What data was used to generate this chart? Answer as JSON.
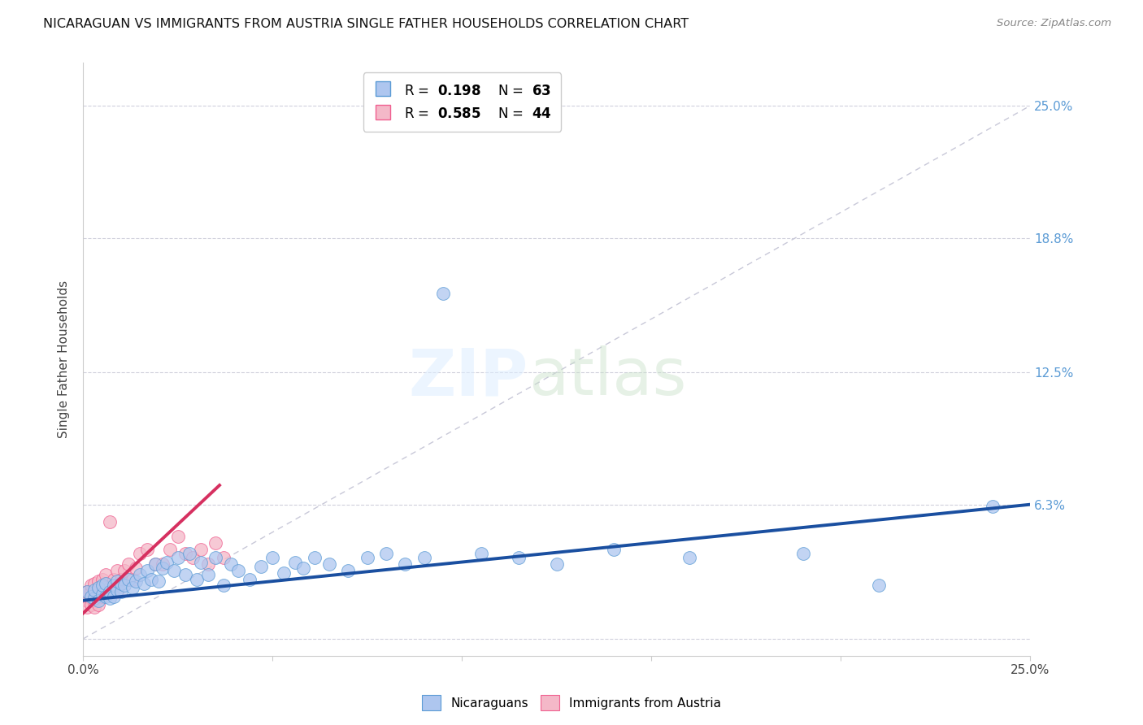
{
  "title": "NICARAGUAN VS IMMIGRANTS FROM AUSTRIA SINGLE FATHER HOUSEHOLDS CORRELATION CHART",
  "source": "Source: ZipAtlas.com",
  "ylabel": "Single Father Households",
  "xmin": 0.0,
  "xmax": 0.25,
  "ymin": -0.008,
  "ymax": 0.27,
  "ytick_vals": [
    0.0,
    0.063,
    0.125,
    0.188,
    0.25
  ],
  "ytick_labels": [
    "",
    "6.3%",
    "12.5%",
    "18.8%",
    "25.0%"
  ],
  "xtick_vals": [
    0.0,
    0.05,
    0.1,
    0.15,
    0.2,
    0.25
  ],
  "xtick_labels": [
    "0.0%",
    "",
    "",
    "",
    "",
    "25.0%"
  ],
  "legend_blue_color": "#aec6ef",
  "legend_pink_color": "#f4b8c8",
  "blue_edge_color": "#5b9bd5",
  "pink_edge_color": "#f06090",
  "trend_blue_color": "#1a4fa0",
  "trend_pink_color": "#d63060",
  "diag_color": "#c8c8d8",
  "blue_trend_x0": 0.0,
  "blue_trend_y0": 0.018,
  "blue_trend_x1": 0.25,
  "blue_trend_y1": 0.063,
  "pink_trend_x0": 0.0,
  "pink_trend_y0": 0.012,
  "pink_trend_x1": 0.036,
  "pink_trend_y1": 0.072,
  "blue_x": [
    0.001,
    0.002,
    0.003,
    0.003,
    0.004,
    0.004,
    0.005,
    0.005,
    0.006,
    0.006,
    0.007,
    0.007,
    0.008,
    0.008,
    0.009,
    0.009,
    0.01,
    0.01,
    0.011,
    0.012,
    0.013,
    0.014,
    0.015,
    0.016,
    0.017,
    0.018,
    0.019,
    0.02,
    0.021,
    0.022,
    0.024,
    0.025,
    0.027,
    0.028,
    0.03,
    0.031,
    0.033,
    0.035,
    0.037,
    0.039,
    0.041,
    0.044,
    0.047,
    0.05,
    0.053,
    0.056,
    0.058,
    0.061,
    0.065,
    0.07,
    0.075,
    0.08,
    0.085,
    0.09,
    0.095,
    0.105,
    0.115,
    0.125,
    0.14,
    0.16,
    0.19,
    0.21,
    0.24
  ],
  "blue_y": [
    0.022,
    0.02,
    0.019,
    0.023,
    0.018,
    0.024,
    0.021,
    0.025,
    0.02,
    0.026,
    0.019,
    0.022,
    0.02,
    0.025,
    0.023,
    0.027,
    0.022,
    0.026,
    0.025,
    0.028,
    0.024,
    0.027,
    0.03,
    0.026,
    0.032,
    0.028,
    0.035,
    0.027,
    0.033,
    0.036,
    0.032,
    0.038,
    0.03,
    0.04,
    0.028,
    0.036,
    0.03,
    0.038,
    0.025,
    0.035,
    0.032,
    0.028,
    0.034,
    0.038,
    0.031,
    0.036,
    0.033,
    0.038,
    0.035,
    0.032,
    0.038,
    0.04,
    0.035,
    0.038,
    0.162,
    0.04,
    0.038,
    0.035,
    0.042,
    0.038,
    0.04,
    0.025,
    0.062
  ],
  "pink_x": [
    0.001,
    0.001,
    0.001,
    0.002,
    0.002,
    0.002,
    0.002,
    0.003,
    0.003,
    0.003,
    0.003,
    0.004,
    0.004,
    0.004,
    0.004,
    0.005,
    0.005,
    0.005,
    0.006,
    0.006,
    0.006,
    0.007,
    0.007,
    0.008,
    0.008,
    0.009,
    0.009,
    0.01,
    0.011,
    0.012,
    0.013,
    0.014,
    0.015,
    0.017,
    0.019,
    0.021,
    0.023,
    0.025,
    0.027,
    0.029,
    0.031,
    0.033,
    0.035,
    0.037
  ],
  "pink_y": [
    0.018,
    0.022,
    0.015,
    0.019,
    0.022,
    0.016,
    0.025,
    0.018,
    0.022,
    0.015,
    0.026,
    0.019,
    0.023,
    0.016,
    0.027,
    0.02,
    0.024,
    0.028,
    0.022,
    0.026,
    0.03,
    0.024,
    0.055,
    0.025,
    0.028,
    0.022,
    0.032,
    0.028,
    0.032,
    0.035,
    0.028,
    0.033,
    0.04,
    0.042,
    0.035,
    0.035,
    0.042,
    0.048,
    0.04,
    0.038,
    0.042,
    0.035,
    0.045,
    0.038
  ]
}
